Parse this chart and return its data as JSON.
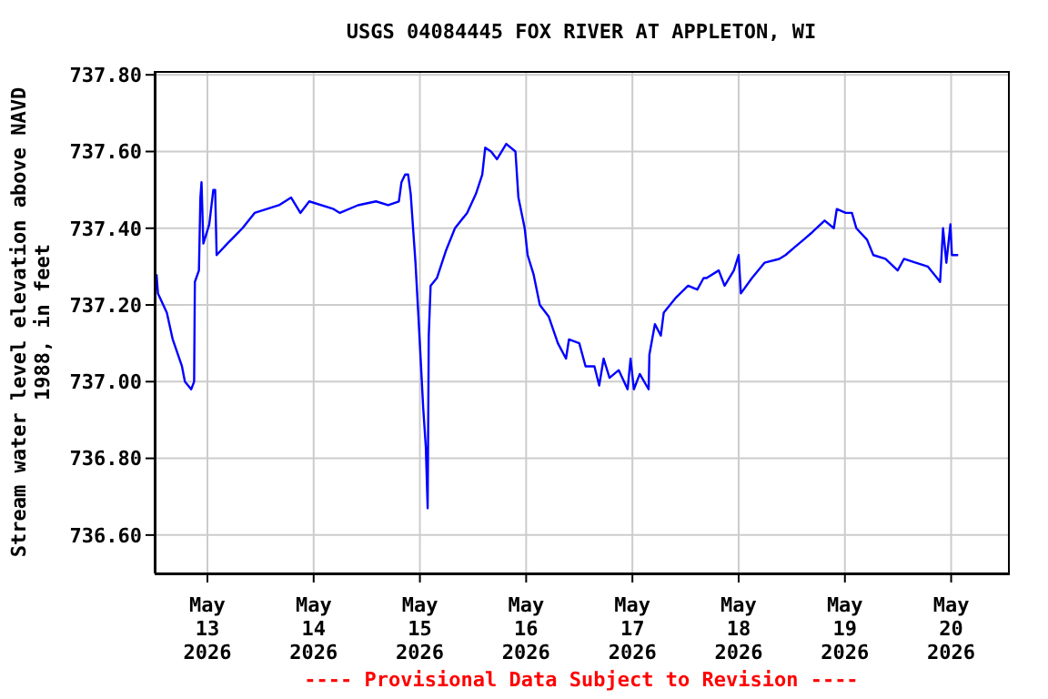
{
  "chart_data": {
    "type": "line",
    "title": "USGS 04084445 FOX RIVER AT APPLETON, WI",
    "ylabel": "Stream water level elevation above NAVD\n1988, in feet",
    "annotations": [
      "---- Provisional Data Subject to Revision ----"
    ],
    "x": [
      "2026-05-12T12:30",
      "2026-05-12T12:50",
      "2026-05-12T14:50",
      "2026-05-12T16:10",
      "2026-05-12T18:15",
      "2026-05-12T18:55",
      "2026-05-12T20:20",
      "2026-05-12T21:00",
      "2026-05-12T21:10",
      "2026-05-12T22:05",
      "2026-05-12T22:25",
      "2026-05-12T22:40",
      "2026-05-12T23:05",
      "2026-05-13T00:25",
      "2026-05-13T01:20",
      "2026-05-13T01:45",
      "2026-05-13T02:05",
      "2026-05-13T04:30",
      "2026-05-13T07:55",
      "2026-05-13T10:40",
      "2026-05-13T16:10",
      "2026-05-13T18:55",
      "2026-05-13T21:00",
      "2026-05-13T23:00",
      "2026-05-14T04:30",
      "2026-05-14T05:55",
      "2026-05-14T10:00",
      "2026-05-14T14:05",
      "2026-05-14T16:50",
      "2026-05-14T19:15",
      "2026-05-14T19:50",
      "2026-05-14T20:40",
      "2026-05-14T21:20",
      "2026-05-14T21:55",
      "2026-05-14T23:00",
      "2026-05-14T23:40",
      "2026-05-15T00:45",
      "2026-05-15T01:20",
      "2026-05-15T01:45",
      "2026-05-15T02:00",
      "2026-05-15T02:25",
      "2026-05-15T03:50",
      "2026-05-15T05:50",
      "2026-05-15T07:55",
      "2026-05-15T10:40",
      "2026-05-15T12:40",
      "2026-05-15T14:05",
      "2026-05-15T14:45",
      "2026-05-15T16:05",
      "2026-05-15T17:25",
      "2026-05-15T19:30",
      "2026-05-15T21:35",
      "2026-05-15T22:15",
      "2026-05-15T23:40",
      "2026-05-16T00:20",
      "2026-05-16T01:40",
      "2026-05-16T03:05",
      "2026-05-16T05:05",
      "2026-05-16T07:10",
      "2026-05-16T09:00",
      "2026-05-16T09:40",
      "2026-05-16T12:00",
      "2026-05-16T13:25",
      "2026-05-16T15:25",
      "2026-05-16T16:30",
      "2026-05-16T17:30",
      "2026-05-16T18:50",
      "2026-05-16T20:55",
      "2026-05-16T22:55",
      "2026-05-16T23:35",
      "2026-05-17T00:20",
      "2026-05-17T01:40",
      "2026-05-17T03:40",
      "2026-05-17T03:50",
      "2026-05-17T05:05",
      "2026-05-17T06:25",
      "2026-05-17T07:05",
      "2026-05-17T09:55",
      "2026-05-17T12:35",
      "2026-05-17T14:40",
      "2026-05-17T16:05",
      "2026-05-17T16:45",
      "2026-05-17T19:30",
      "2026-05-17T20:50",
      "2026-05-17T22:55",
      "2026-05-18T00:00",
      "2026-05-18T00:30",
      "2026-05-18T03:00",
      "2026-05-18T05:50",
      "2026-05-18T09:10",
      "2026-05-18T10:35",
      "2026-05-18T12:35",
      "2026-05-18T14:40",
      "2026-05-18T16:40",
      "2026-05-18T19:25",
      "2026-05-18T21:30",
      "2026-05-18T22:10",
      "2026-05-19T00:10",
      "2026-05-19T01:35",
      "2026-05-19T02:35",
      "2026-05-19T05:00",
      "2026-05-19T06:25",
      "2026-05-19T09:10",
      "2026-05-19T11:55",
      "2026-05-19T13:20",
      "2026-05-19T16:00",
      "2026-05-19T18:45",
      "2026-05-19T20:50",
      "2026-05-19T21:30",
      "2026-05-19T22:10",
      "2026-05-19T22:55",
      "2026-05-19T23:50",
      "2026-05-20T00:10",
      "2026-05-20T01:35"
    ],
    "series": [
      {
        "color": "#0000ff",
        "values": [
          737.28,
          737.23,
          737.18,
          737.11,
          737.04,
          737.0,
          736.98,
          737.0,
          737.26,
          737.29,
          737.48,
          737.52,
          737.36,
          737.41,
          737.5,
          737.5,
          737.33,
          737.36,
          737.4,
          737.44,
          737.46,
          737.48,
          737.44,
          737.47,
          737.45,
          737.44,
          737.46,
          737.47,
          737.46,
          737.47,
          737.52,
          737.54,
          737.54,
          737.49,
          737.31,
          737.17,
          736.93,
          736.83,
          736.67,
          737.12,
          737.25,
          737.27,
          737.34,
          737.4,
          737.44,
          737.49,
          737.54,
          737.61,
          737.6,
          737.58,
          737.62,
          737.6,
          737.48,
          737.4,
          737.33,
          737.28,
          737.2,
          737.17,
          737.1,
          737.06,
          737.11,
          737.1,
          737.04,
          737.04,
          736.99,
          737.06,
          737.01,
          737.03,
          736.98,
          737.06,
          736.98,
          737.02,
          736.98,
          737.07,
          737.15,
          737.12,
          737.18,
          737.22,
          737.25,
          737.24,
          737.27,
          737.27,
          737.29,
          737.25,
          737.29,
          737.33,
          737.23,
          737.27,
          737.31,
          737.32,
          737.33,
          737.35,
          737.37,
          737.39,
          737.42,
          737.4,
          737.45,
          737.44,
          737.44,
          737.4,
          737.37,
          737.33,
          737.32,
          737.29,
          737.32,
          737.31,
          737.3,
          737.27,
          737.26,
          737.4,
          737.31,
          737.41,
          737.33,
          737.33
        ]
      }
    ],
    "xlim": [
      "2026-05-12T12:05",
      "2026-05-20T12:50"
    ],
    "xticks": [
      {
        "value": "2026-05-13",
        "label": "May\n13\n2026"
      },
      {
        "value": "2026-05-14",
        "label": "May\n14\n2026"
      },
      {
        "value": "2026-05-15",
        "label": "May\n15\n2026"
      },
      {
        "value": "2026-05-16",
        "label": "May\n16\n2026"
      },
      {
        "value": "2026-05-17",
        "label": "May\n17\n2026"
      },
      {
        "value": "2026-05-18",
        "label": "May\n18\n2026"
      },
      {
        "value": "2026-05-19",
        "label": "May\n19\n2026"
      },
      {
        "value": "2026-05-20",
        "label": "May\n20\n2026"
      }
    ],
    "ylim": [
      736.5,
      737.81
    ],
    "yticks": [
      {
        "value": 736.6,
        "label": "736.60"
      },
      {
        "value": 736.8,
        "label": "736.80"
      },
      {
        "value": 737.0,
        "label": "737.00"
      },
      {
        "value": 737.2,
        "label": "737.20"
      },
      {
        "value": 737.4,
        "label": "737.40"
      },
      {
        "value": 737.6,
        "label": "737.60"
      },
      {
        "value": 737.8,
        "label": "737.80"
      }
    ],
    "grid": true,
    "legend": false,
    "line_style": "solid",
    "marker": "none"
  }
}
